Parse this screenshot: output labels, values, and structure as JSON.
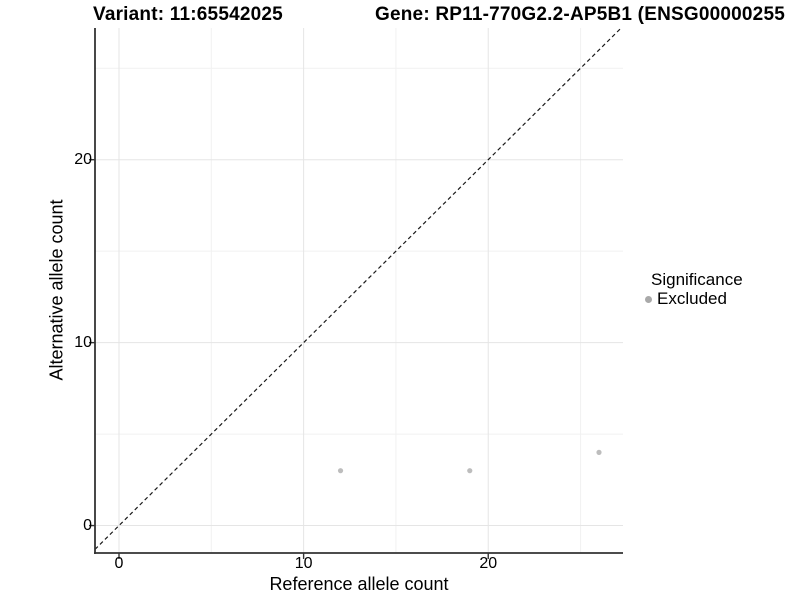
{
  "figure": {
    "title_left": "Variant: 11:65542025",
    "title_right": "Gene: RP11-770G2.2-AP5B1 (ENSG00000255",
    "background_color": "#ffffff"
  },
  "chart_data": {
    "type": "scatter",
    "title_left": "Variant: 11:65542025",
    "title_right": "Gene: RP11-770G2.2-AP5B1 (ENSG00000255",
    "xlabel": "Reference allele count",
    "ylabel": "Alternative allele count",
    "series": [
      {
        "name": "Excluded",
        "color": "#bdbdbd",
        "points": [
          {
            "x": 12,
            "y": 3
          },
          {
            "x": 19,
            "y": 3
          },
          {
            "x": 26,
            "y": 4
          }
        ]
      }
    ],
    "identity_line": {
      "type": "y_equals_x",
      "style": "dashed",
      "color": "#1a1a1a"
    },
    "x_ticks": [
      "0",
      "10",
      "20"
    ],
    "y_ticks": [
      "0",
      "10",
      "20"
    ],
    "x_tick_values": [
      0,
      10,
      20
    ],
    "y_tick_values": [
      0,
      10,
      20
    ],
    "x_minor_tick_values": [
      5,
      15,
      25
    ],
    "y_minor_tick_values": [
      5,
      15,
      25
    ],
    "xlim": [
      -1.3,
      27.3
    ],
    "ylim": [
      -1.5,
      27.2
    ],
    "grid": true,
    "legend": {
      "title": "Significance",
      "position": "right",
      "items": [
        {
          "label": "Excluded",
          "color": "#a9a9a9",
          "marker": "dot-icon"
        }
      ]
    },
    "colors": {
      "point": "#bdbdbd",
      "grid_major": "#e5e5e5",
      "grid_minor": "#f1f1f1",
      "axis_line": "#333333",
      "text": "#000000"
    }
  }
}
